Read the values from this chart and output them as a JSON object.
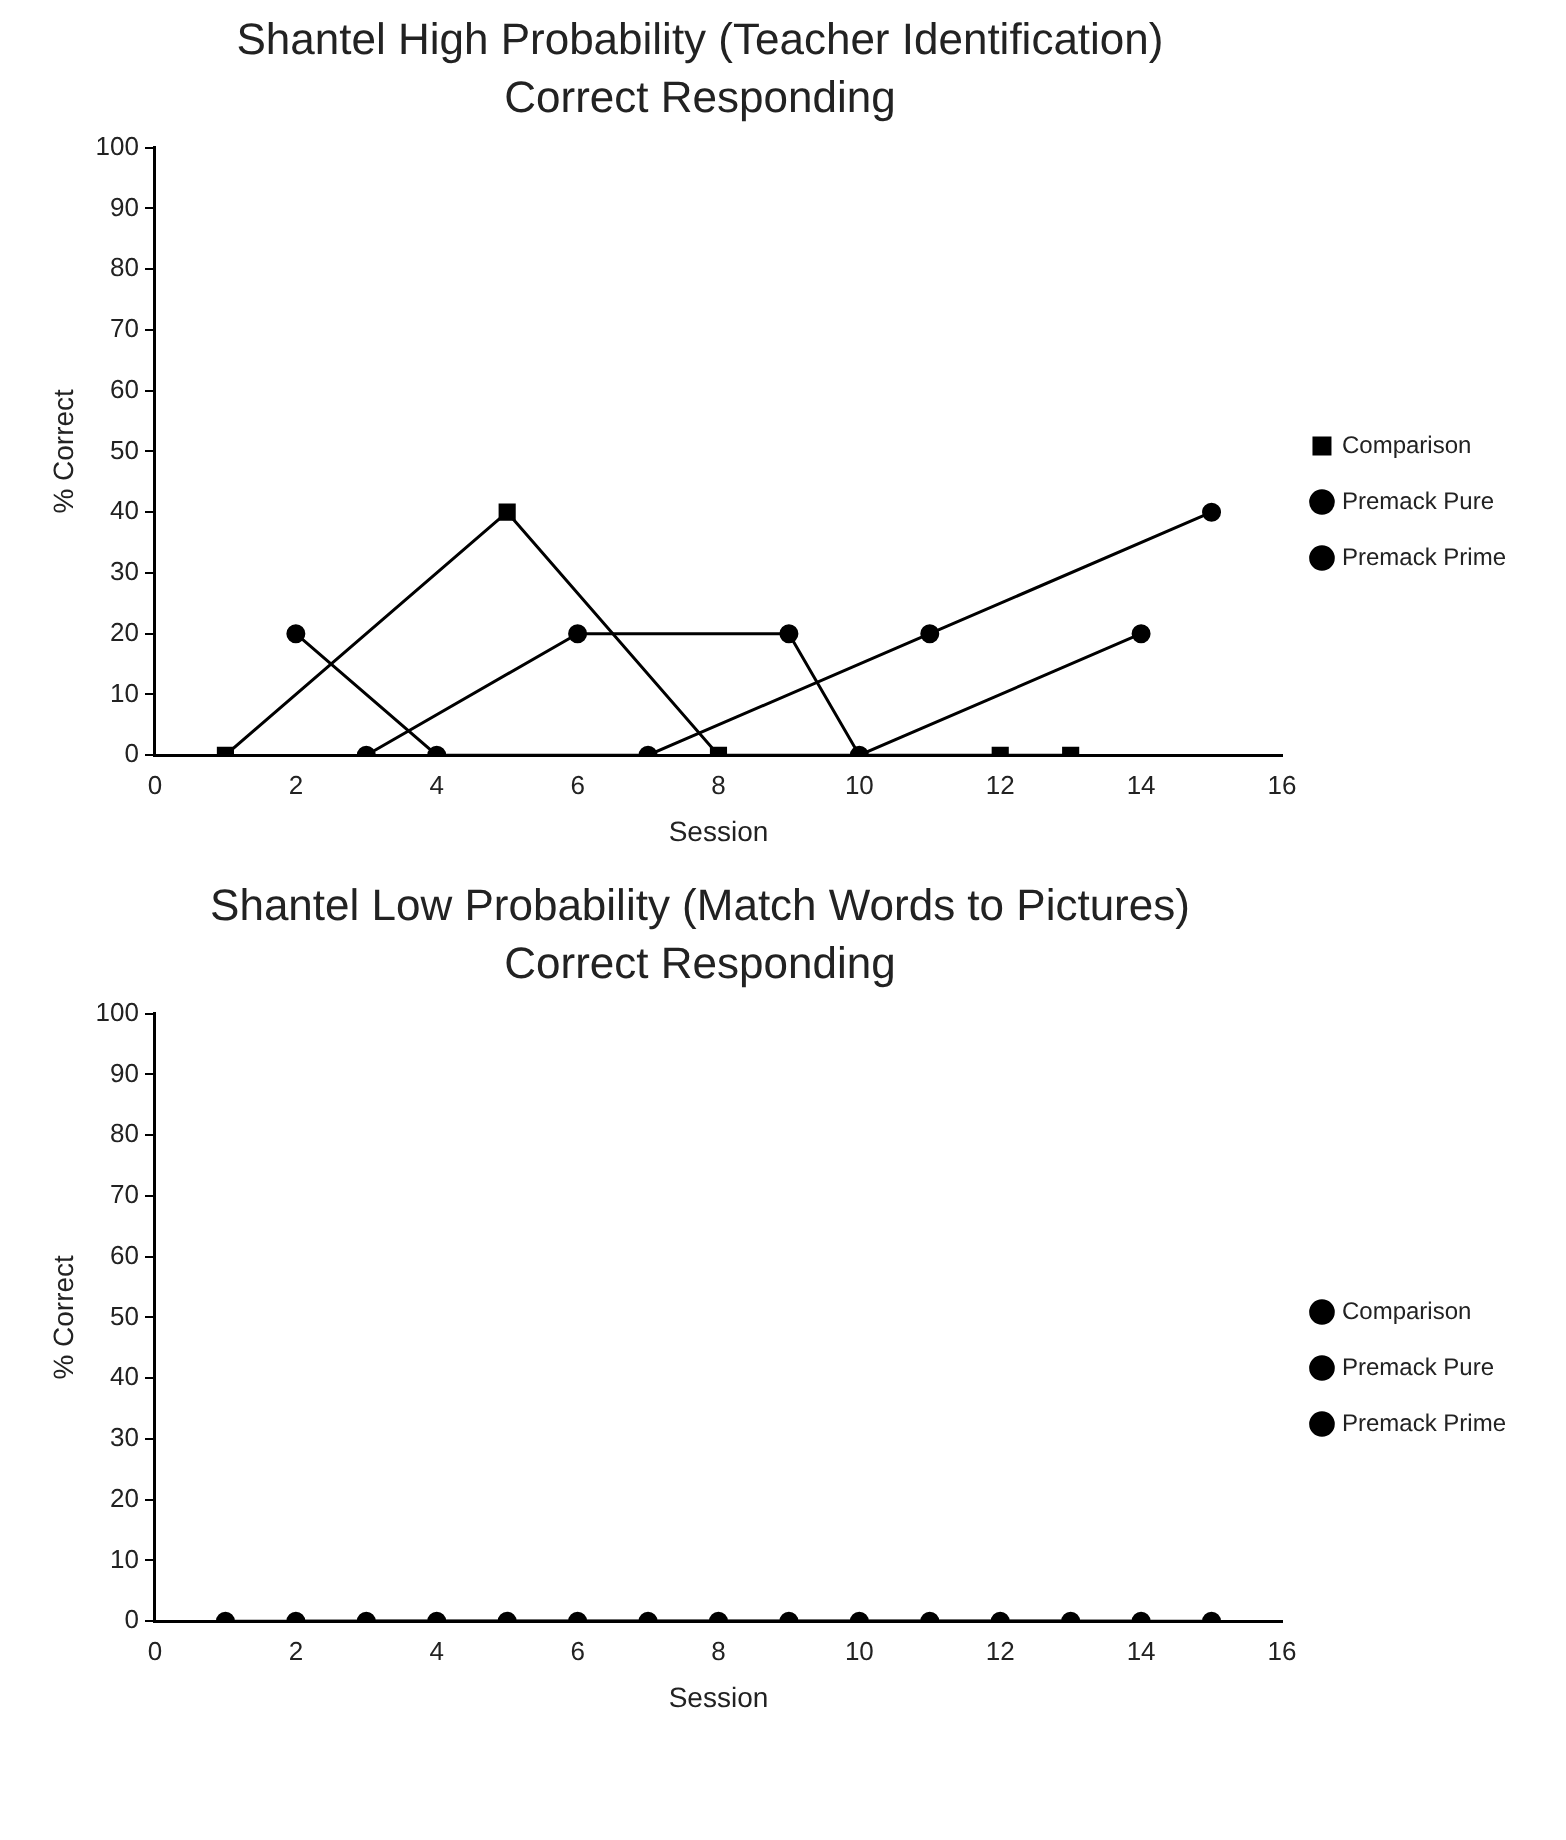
{
  "chart_data": [
    {
      "type": "line",
      "title": "Shantel High Probability (Teacher Identification) Correct Responding",
      "xlabel": "Session",
      "ylabel": "% Correct",
      "xlim": [
        0,
        16
      ],
      "xticks": [
        0,
        2,
        4,
        6,
        8,
        10,
        12,
        14,
        16
      ],
      "ylim": [
        0,
        100
      ],
      "yticks": [
        0,
        10,
        20,
        30,
        40,
        50,
        60,
        70,
        80,
        90,
        100
      ],
      "grid": false,
      "legend": "right",
      "series": [
        {
          "name": "Comparison",
          "color": "#000000",
          "marker": "square",
          "x": [
            1,
            5,
            8,
            12,
            13
          ],
          "values": [
            0,
            40,
            0,
            0,
            0
          ]
        },
        {
          "name": "Premack Pure",
          "color": "#000000",
          "marker": "circle",
          "x": [
            3,
            6,
            9,
            10,
            14
          ],
          "values": [
            0,
            20,
            20,
            0,
            20
          ]
        },
        {
          "name": "Premack Prime",
          "color": "#000000",
          "marker": "circle",
          "x": [
            2,
            4,
            7,
            11,
            15
          ],
          "values": [
            20,
            0,
            0,
            20,
            40
          ]
        }
      ]
    },
    {
      "type": "line",
      "title": "Shantel Low Probability (Match Words to Pictures) Correct Responding",
      "xlabel": "Session",
      "ylabel": "% Correct",
      "xlim": [
        0,
        16
      ],
      "xticks": [
        0,
        2,
        4,
        6,
        8,
        10,
        12,
        14,
        16
      ],
      "ylim": [
        0,
        100
      ],
      "yticks": [
        0,
        10,
        20,
        30,
        40,
        50,
        60,
        70,
        80,
        90,
        100
      ],
      "grid": false,
      "legend": "right",
      "series": [
        {
          "name": "Comparison",
          "color": "#000000",
          "marker": "circle",
          "x": [
            1,
            5,
            8,
            12,
            13
          ],
          "values": [
            0,
            0,
            0,
            0,
            0
          ]
        },
        {
          "name": "Premack Pure",
          "color": "#000000",
          "marker": "circle",
          "x": [
            3,
            6,
            9,
            10,
            14
          ],
          "values": [
            0,
            0,
            0,
            0,
            0
          ]
        },
        {
          "name": "Premack Prime",
          "color": "#000000",
          "marker": "circle",
          "x": [
            2,
            4,
            7,
            11,
            15
          ],
          "values": [
            0,
            0,
            0,
            0,
            0
          ]
        }
      ]
    }
  ]
}
